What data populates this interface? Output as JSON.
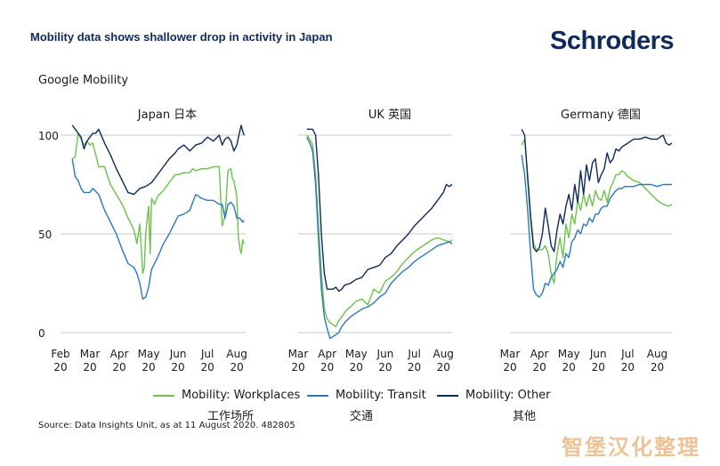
{
  "header": {
    "title": "Mobility data shows shallower drop in activity in Japan",
    "logo": "Schroders",
    "subtitle": "Google Mobility"
  },
  "source": "Source: Data Insights Unit, as at 11 August 2020. 482805",
  "watermark": "智堡汉化整理",
  "colors": {
    "workplaces": "#6cc24a",
    "transit": "#2a7ab8",
    "other": "#0f2a5a",
    "axis": "#c9c9c9"
  },
  "legend": [
    {
      "label": "Mobility: Workplaces",
      "sub": "工作场所",
      "color": "#6cc24a"
    },
    {
      "label": "Mobility: Transit",
      "sub": "交通",
      "color": "#2a7ab8"
    },
    {
      "label": "Mobility: Other",
      "sub": "其他",
      "color": "#0f2a5a"
    }
  ],
  "chart_data": [
    {
      "type": "line",
      "title": "Japan  日本",
      "yticks": [
        100,
        50,
        0
      ],
      "ylim": [
        0,
        105
      ],
      "xlim": [
        0,
        6.3
      ],
      "xtick_labels": [
        "Feb",
        "Mar",
        "Apr",
        "May",
        "Jun",
        "Jul",
        "Aug"
      ],
      "xtick_years": [
        "20",
        "20",
        "20",
        "20",
        "20",
        "20",
        "20"
      ],
      "xtick_pos": [
        0,
        1,
        2,
        3,
        4,
        5,
        6
      ],
      "series": [
        {
          "name": "Mobility: Workplaces",
          "x": [
            0.4,
            0.5,
            0.6,
            0.7,
            0.8,
            0.9,
            1.0,
            1.1,
            1.3,
            1.5,
            1.7,
            1.9,
            2.1,
            2.3,
            2.5,
            2.6,
            2.7,
            2.8,
            2.85,
            2.9,
            3.0,
            3.05,
            3.1,
            3.2,
            3.3,
            3.5,
            3.7,
            3.9,
            4.0,
            4.2,
            4.4,
            4.5,
            4.6,
            4.8,
            5.0,
            5.2,
            5.4,
            5.5,
            5.6,
            5.7,
            5.8,
            5.85,
            5.9,
            6.0,
            6.05,
            6.1,
            6.15,
            6.2,
            6.25
          ],
          "y": [
            88,
            89,
            101,
            98,
            95,
            97,
            95,
            96,
            84,
            84,
            75,
            70,
            65,
            58,
            52,
            45,
            55,
            30,
            33,
            50,
            64,
            40,
            68,
            65,
            69,
            72,
            76,
            80,
            80,
            81,
            81,
            83,
            82,
            83,
            83,
            84,
            84,
            54,
            59,
            82,
            83,
            78,
            77,
            69,
            49,
            43,
            40,
            47,
            45
          ]
        },
        {
          "name": "Mobility: Transit",
          "x": [
            0.4,
            0.5,
            0.6,
            0.7,
            0.8,
            0.9,
            1.0,
            1.1,
            1.3,
            1.5,
            1.7,
            1.9,
            2.1,
            2.3,
            2.5,
            2.6,
            2.7,
            2.8,
            2.9,
            3.0,
            3.1,
            3.3,
            3.5,
            3.7,
            3.9,
            4.0,
            4.2,
            4.4,
            4.6,
            4.8,
            5.0,
            5.2,
            5.4,
            5.5,
            5.6,
            5.7,
            5.8,
            5.9,
            6.0,
            6.1,
            6.2,
            6.25
          ],
          "y": [
            88,
            79,
            77,
            73,
            71,
            71,
            71,
            73,
            70,
            62,
            56,
            50,
            42,
            35,
            33,
            30,
            25,
            17,
            18,
            23,
            32,
            38,
            45,
            50,
            56,
            59,
            60,
            62,
            70,
            68,
            67,
            67,
            65,
            65,
            58,
            65,
            66,
            64,
            58,
            58,
            56,
            57
          ]
        },
        {
          "name": "Mobility: Other",
          "x": [
            0.4,
            0.5,
            0.6,
            0.7,
            0.8,
            0.9,
            1.0,
            1.1,
            1.2,
            1.3,
            1.5,
            1.7,
            1.9,
            2.1,
            2.3,
            2.5,
            2.7,
            2.9,
            3.1,
            3.3,
            3.5,
            3.7,
            3.9,
            4.0,
            4.2,
            4.4,
            4.6,
            4.8,
            5.0,
            5.2,
            5.4,
            5.5,
            5.6,
            5.7,
            5.8,
            5.9,
            6.0,
            6.1,
            6.15,
            6.2,
            6.25
          ],
          "y": [
            105,
            103,
            101,
            99,
            93,
            97,
            99,
            101,
            101,
            103,
            96,
            90,
            83,
            77,
            71,
            70,
            73,
            74,
            76,
            80,
            84,
            88,
            91,
            93,
            95,
            92,
            95,
            96,
            99,
            97,
            100,
            95,
            98,
            99,
            97,
            92,
            95,
            102,
            105,
            102,
            100
          ]
        }
      ]
    },
    {
      "type": "line",
      "title": "UK  英国",
      "yticks": [
        100,
        50,
        0
      ],
      "ylim": [
        0,
        105
      ],
      "xlim": [
        0,
        5.3
      ],
      "xtick_labels": [
        "Mar",
        "Apr",
        "May",
        "Jun",
        "Jul",
        "Aug"
      ],
      "xtick_years": [
        "20",
        "20",
        "20",
        "20",
        "20",
        "20"
      ],
      "xtick_pos": [
        0,
        1,
        2,
        3,
        4,
        5
      ],
      "series": [
        {
          "name": "Mobility: Workplaces",
          "x": [
            0.3,
            0.4,
            0.5,
            0.6,
            0.7,
            0.8,
            0.9,
            1.0,
            1.1,
            1.2,
            1.3,
            1.4,
            1.5,
            1.6,
            1.7,
            1.8,
            2.0,
            2.2,
            2.4,
            2.6,
            2.8,
            3.0,
            3.2,
            3.4,
            3.6,
            3.8,
            4.0,
            4.2,
            4.4,
            4.6,
            4.8,
            5.0,
            5.2,
            5.3
          ],
          "y": [
            100,
            98,
            95,
            80,
            55,
            30,
            12,
            7,
            5,
            4,
            3,
            6,
            8,
            10,
            12,
            13,
            16,
            17,
            14,
            22,
            20,
            26,
            28,
            31,
            35,
            38,
            41,
            43,
            45,
            47,
            48,
            47,
            46,
            47
          ]
        },
        {
          "name": "Mobility: Transit",
          "x": [
            0.3,
            0.4,
            0.5,
            0.6,
            0.7,
            0.8,
            0.9,
            1.0,
            1.1,
            1.2,
            1.3,
            1.4,
            1.5,
            1.6,
            1.8,
            2.0,
            2.2,
            2.4,
            2.6,
            2.8,
            3.0,
            3.2,
            3.4,
            3.6,
            3.8,
            4.0,
            4.2,
            4.4,
            4.6,
            4.8,
            5.0,
            5.2,
            5.3
          ],
          "y": [
            99,
            96,
            92,
            75,
            48,
            22,
            8,
            2,
            -3,
            -2,
            -1,
            0,
            3,
            5,
            8,
            10,
            12,
            13,
            15,
            18,
            20,
            25,
            28,
            31,
            33,
            36,
            38,
            40,
            42,
            44,
            45,
            46,
            45
          ]
        },
        {
          "name": "Mobility: Other",
          "x": [
            0.3,
            0.4,
            0.5,
            0.6,
            0.7,
            0.8,
            0.9,
            1.0,
            1.1,
            1.2,
            1.3,
            1.4,
            1.5,
            1.6,
            1.8,
            2.0,
            2.2,
            2.4,
            2.6,
            2.8,
            3.0,
            3.2,
            3.4,
            3.6,
            3.8,
            4.0,
            4.2,
            4.4,
            4.6,
            4.8,
            5.0,
            5.1,
            5.2,
            5.3
          ],
          "y": [
            103,
            103,
            103,
            100,
            80,
            50,
            30,
            22,
            22,
            22,
            23,
            21,
            22,
            24,
            25,
            27,
            28,
            32,
            33,
            34,
            38,
            40,
            44,
            47,
            50,
            54,
            57,
            60,
            63,
            67,
            71,
            75,
            74,
            75
          ]
        }
      ]
    },
    {
      "type": "line",
      "title": "Germany  德国",
      "yticks": [
        100,
        50,
        0
      ],
      "ylim": [
        0,
        105
      ],
      "xlim": [
        0,
        5.5
      ],
      "xtick_labels": [
        "Mar",
        "Apr",
        "May",
        "Jun",
        "Jul",
        "Aug"
      ],
      "xtick_years": [
        "20",
        "20",
        "20",
        "20",
        "20",
        "20"
      ],
      "xtick_pos": [
        0,
        1,
        2,
        3,
        4,
        5
      ],
      "series": [
        {
          "name": "Mobility: Workplaces",
          "x": [
            0.4,
            0.5,
            0.6,
            0.7,
            0.8,
            0.9,
            1.0,
            1.1,
            1.2,
            1.3,
            1.4,
            1.5,
            1.6,
            1.7,
            1.8,
            1.9,
            2.0,
            2.1,
            2.2,
            2.3,
            2.4,
            2.5,
            2.6,
            2.7,
            2.8,
            2.9,
            3.0,
            3.1,
            3.2,
            3.3,
            3.4,
            3.5,
            3.6,
            3.7,
            3.8,
            3.9,
            4.0,
            4.2,
            4.4,
            4.6,
            4.8,
            5.0,
            5.2,
            5.4,
            5.5
          ],
          "y": [
            95,
            98,
            80,
            60,
            45,
            42,
            42,
            42,
            44,
            40,
            30,
            25,
            40,
            48,
            38,
            55,
            48,
            60,
            55,
            67,
            62,
            70,
            64,
            70,
            64,
            72,
            68,
            67,
            72,
            66,
            73,
            76,
            80,
            80,
            82,
            81,
            79,
            77,
            76,
            73,
            70,
            67,
            65,
            64,
            65
          ]
        },
        {
          "name": "Mobility: Transit",
          "x": [
            0.4,
            0.5,
            0.6,
            0.7,
            0.8,
            0.9,
            1.0,
            1.1,
            1.2,
            1.3,
            1.4,
            1.5,
            1.6,
            1.7,
            1.8,
            1.9,
            2.0,
            2.1,
            2.2,
            2.3,
            2.4,
            2.5,
            2.6,
            2.7,
            2.8,
            2.9,
            3.0,
            3.1,
            3.2,
            3.3,
            3.4,
            3.5,
            3.6,
            3.7,
            3.8,
            3.9,
            4.0,
            4.2,
            4.4,
            4.6,
            4.8,
            5.0,
            5.2,
            5.4,
            5.5
          ],
          "y": [
            90,
            80,
            62,
            40,
            22,
            19,
            18,
            20,
            25,
            24,
            28,
            30,
            32,
            36,
            33,
            40,
            38,
            46,
            48,
            52,
            50,
            55,
            54,
            58,
            56,
            60,
            60,
            63,
            64,
            64,
            68,
            70,
            72,
            73,
            73,
            74,
            74,
            74,
            75,
            75,
            75,
            74,
            75,
            75,
            75
          ]
        },
        {
          "name": "Mobility: Other",
          "x": [
            0.4,
            0.5,
            0.6,
            0.7,
            0.8,
            0.9,
            1.0,
            1.1,
            1.2,
            1.3,
            1.4,
            1.5,
            1.6,
            1.7,
            1.8,
            1.9,
            2.0,
            2.1,
            2.2,
            2.3,
            2.4,
            2.5,
            2.6,
            2.7,
            2.8,
            2.9,
            3.0,
            3.1,
            3.2,
            3.3,
            3.4,
            3.5,
            3.6,
            3.7,
            3.8,
            3.9,
            4.0,
            4.2,
            4.4,
            4.6,
            4.8,
            5.0,
            5.1,
            5.2,
            5.3,
            5.4,
            5.5
          ],
          "y": [
            103,
            100,
            78,
            58,
            43,
            41,
            43,
            50,
            63,
            54,
            44,
            41,
            52,
            60,
            55,
            64,
            70,
            62,
            75,
            66,
            82,
            70,
            85,
            77,
            86,
            88,
            76,
            80,
            83,
            91,
            86,
            88,
            93,
            92,
            94,
            95,
            96,
            98,
            98,
            99,
            98,
            98,
            99,
            100,
            96,
            95,
            96
          ]
        }
      ]
    }
  ]
}
